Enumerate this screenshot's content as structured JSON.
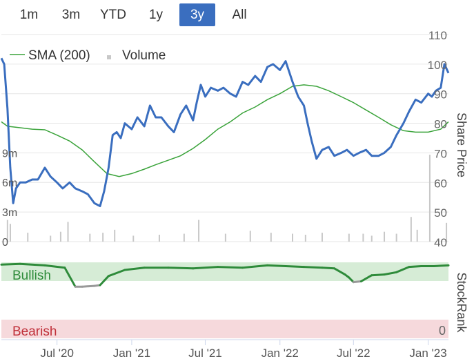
{
  "range_buttons": [
    {
      "label": "1m",
      "active": false
    },
    {
      "label": "3m",
      "active": false
    },
    {
      "label": "YTD",
      "active": false
    },
    {
      "label": "1y",
      "active": false
    },
    {
      "label": "3y",
      "active": true
    },
    {
      "label": "All",
      "active": false
    }
  ],
  "legend": {
    "sma_label": "SMA (200)",
    "volume_label": "Volume"
  },
  "colors": {
    "price": "#3a6ebf",
    "sma": "#3aa33a",
    "volume": "#c8c8c8",
    "bullish_band": "#d6ecd6",
    "bearish_band": "#f6d9dc",
    "stockrank": "#2e8b3a",
    "stockrank_low": "#999999",
    "bullish_text": "#2e8b3a",
    "bearish_text": "#c0303a"
  },
  "chart_data": {
    "type": "line",
    "ylabel": "Share Price",
    "ylim": [
      40,
      110
    ],
    "yticks": [
      110,
      100,
      90,
      80,
      70,
      60,
      50,
      40
    ],
    "volume_ticks": [
      "9m",
      "6m",
      "3m",
      "0"
    ],
    "x_tick_labels": [
      "Jul '20",
      "Jan '21",
      "Jul '21",
      "Jan '22",
      "Jul '22",
      "Jan '23"
    ],
    "x_tick_dates": [
      "2020-07-01",
      "2021-01-01",
      "2021-07-01",
      "2022-01-01",
      "2022-07-01",
      "2023-01-01"
    ],
    "xlim": [
      "2020-02-15",
      "2023-02-20"
    ],
    "series": [
      {
        "name": "Share Price",
        "x": [
          "2020-02-15",
          "2020-02-22",
          "2020-03-01",
          "2020-03-08",
          "2020-03-15",
          "2020-03-22",
          "2020-04-01",
          "2020-04-15",
          "2020-05-01",
          "2020-05-15",
          "2020-06-01",
          "2020-06-15",
          "2020-07-01",
          "2020-07-15",
          "2020-08-01",
          "2020-08-15",
          "2020-09-01",
          "2020-09-15",
          "2020-10-01",
          "2020-10-15",
          "2020-10-25",
          "2020-11-05",
          "2020-11-15",
          "2020-11-25",
          "2020-12-05",
          "2020-12-15",
          "2021-01-01",
          "2021-01-15",
          "2021-02-01",
          "2021-02-15",
          "2021-03-01",
          "2021-03-15",
          "2021-04-01",
          "2021-04-15",
          "2021-05-01",
          "2021-05-15",
          "2021-06-01",
          "2021-06-10",
          "2021-06-20",
          "2021-07-01",
          "2021-07-15",
          "2021-08-01",
          "2021-08-15",
          "2021-09-01",
          "2021-09-15",
          "2021-10-01",
          "2021-10-15",
          "2021-11-01",
          "2021-11-15",
          "2021-12-01",
          "2021-12-15",
          "2022-01-01",
          "2022-01-15",
          "2022-02-01",
          "2022-02-15",
          "2022-03-01",
          "2022-03-10",
          "2022-03-20",
          "2022-04-01",
          "2022-04-15",
          "2022-05-01",
          "2022-05-15",
          "2022-06-01",
          "2022-06-15",
          "2022-07-01",
          "2022-07-15",
          "2022-08-01",
          "2022-08-15",
          "2022-09-01",
          "2022-09-15",
          "2022-10-01",
          "2022-10-15",
          "2022-11-01",
          "2022-11-15",
          "2022-12-01",
          "2022-12-15",
          "2023-01-01",
          "2023-01-10",
          "2023-01-20",
          "2023-02-01",
          "2023-02-10",
          "2023-02-20"
        ],
        "y": [
          102,
          100,
          85,
          65,
          53,
          58,
          60,
          60,
          61,
          61,
          65,
          62,
          60,
          58,
          60,
          58,
          57,
          56,
          53,
          52,
          57,
          65,
          76,
          77,
          75,
          80,
          78,
          82,
          79,
          86,
          82,
          82,
          79,
          77,
          83,
          86,
          81,
          87,
          93,
          89,
          92,
          91,
          92,
          90,
          89,
          94,
          93,
          96,
          94,
          99,
          100,
          98,
          101,
          94,
          89,
          86,
          80,
          74,
          68,
          71,
          72,
          69,
          70,
          71,
          69,
          70,
          71,
          69,
          69,
          70,
          72,
          76,
          80,
          84,
          88,
          87,
          90,
          89,
          91,
          92,
          100,
          97
        ]
      },
      {
        "name": "SMA (200)",
        "x": [
          "2020-02-15",
          "2020-03-01",
          "2020-04-01",
          "2020-05-01",
          "2020-06-01",
          "2020-07-01",
          "2020-08-01",
          "2020-09-01",
          "2020-10-01",
          "2020-11-01",
          "2020-12-01",
          "2021-01-01",
          "2021-02-01",
          "2021-03-01",
          "2021-04-01",
          "2021-05-01",
          "2021-06-01",
          "2021-07-01",
          "2021-08-01",
          "2021-09-01",
          "2021-10-01",
          "2021-11-01",
          "2021-12-01",
          "2022-01-01",
          "2022-02-01",
          "2022-03-01",
          "2022-04-01",
          "2022-05-01",
          "2022-06-01",
          "2022-07-01",
          "2022-08-01",
          "2022-09-01",
          "2022-10-01",
          "2022-11-01",
          "2022-12-01",
          "2023-01-01",
          "2023-02-01",
          "2023-02-20"
        ],
        "y": [
          80.5,
          79,
          78.5,
          78,
          77.8,
          76,
          74,
          71,
          67,
          63,
          62,
          63,
          64.5,
          66,
          67.5,
          69,
          71.5,
          74.5,
          78,
          80.5,
          83.5,
          85.5,
          88,
          90,
          92.5,
          93,
          92.5,
          91,
          89,
          87,
          84.5,
          82,
          79.5,
          77.5,
          77,
          77,
          78,
          80.5
        ]
      }
    ],
    "volume": {
      "name": "Volume",
      "x": [
        "2020-03-01",
        "2020-03-08",
        "2020-04-20",
        "2020-06-15",
        "2020-07-10",
        "2020-07-28",
        "2020-09-20",
        "2020-10-22",
        "2020-11-20",
        "2021-01-05",
        "2021-03-10",
        "2021-05-10",
        "2021-06-15",
        "2021-08-20",
        "2021-10-20",
        "2021-12-10",
        "2022-02-01",
        "2022-03-05",
        "2022-04-15",
        "2022-06-20",
        "2022-07-25",
        "2022-08-15",
        "2022-09-15",
        "2022-10-15",
        "2022-11-20",
        "2022-12-05",
        "2023-01-05",
        "2023-02-15"
      ],
      "values": [
        2.2,
        1.8,
        0.9,
        0.6,
        1.0,
        2.0,
        0.8,
        0.9,
        1.2,
        0.6,
        0.7,
        0.8,
        2.2,
        0.8,
        1.1,
        0.9,
        0.8,
        0.7,
        0.9,
        0.8,
        0.8,
        0.6,
        1.0,
        0.8,
        2.5,
        1.2,
        8.8,
        1.9
      ]
    },
    "stockrank": {
      "top_label": "Bullish",
      "bottom_label": "Bearish",
      "bottom_value": "0",
      "axis_label": "StockRank",
      "ylim": [
        0,
        100
      ],
      "x": [
        "2020-02-15",
        "2020-04-01",
        "2020-06-01",
        "2020-07-20",
        "2020-08-15",
        "2020-09-01",
        "2020-10-01",
        "2020-10-15",
        "2020-11-05",
        "2020-11-20",
        "2020-12-15",
        "2021-02-01",
        "2021-04-01",
        "2021-06-01",
        "2021-08-01",
        "2021-10-01",
        "2021-12-01",
        "2022-01-15",
        "2022-03-01",
        "2022-04-15",
        "2022-05-15",
        "2022-06-10",
        "2022-06-20",
        "2022-07-01",
        "2022-07-20",
        "2022-08-15",
        "2022-09-15",
        "2022-10-15",
        "2022-11-15",
        "2022-12-15",
        "2023-01-15",
        "2023-02-20"
      ],
      "y": [
        97,
        98,
        96,
        93,
        68,
        68,
        69,
        70,
        82,
        85,
        90,
        93,
        93,
        92,
        94,
        93,
        96,
        95,
        94,
        93,
        92,
        84,
        80,
        74,
        75,
        83,
        84,
        87,
        94,
        95,
        95,
        96
      ]
    }
  }
}
